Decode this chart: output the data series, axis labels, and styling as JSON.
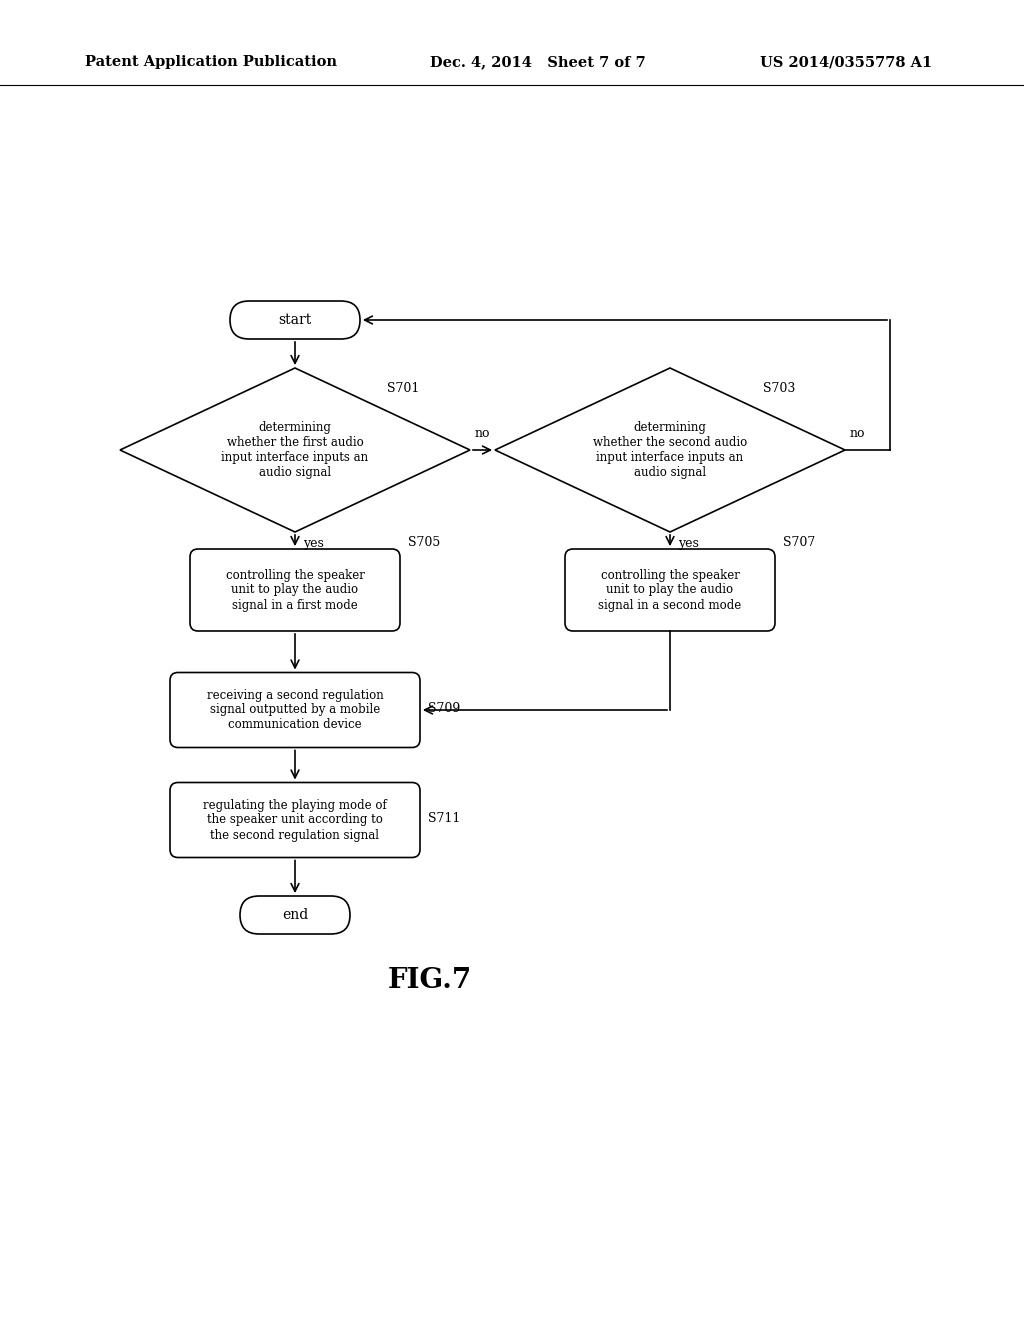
{
  "bg_color": "#ffffff",
  "text_color": "#000000",
  "header_left": "Patent Application Publication",
  "header_mid": "Dec. 4, 2014   Sheet 7 of 7",
  "header_right": "US 2014/0355778 A1",
  "fig_label": "FIG.7",
  "start_label": "start",
  "end_label": "end",
  "diamond1_label": "determining\nwhether the first audio\ninput interface inputs an\naudio signal",
  "diamond1_step": "S701",
  "diamond2_label": "determining\nwhether the second audio\ninput interface inputs an\naudio signal",
  "diamond2_step": "S703",
  "box1_label": "controlling the speaker\nunit to play the audio\nsignal in a first mode",
  "box1_step": "S705",
  "box2_label": "controlling the speaker\nunit to play the audio\nsignal in a second mode",
  "box2_step": "S707",
  "box3_label": "receiving a second regulation\nsignal outputted by a mobile\ncommunication device",
  "box3_step": "S709",
  "box4_label": "regulating the playing mode of\nthe speaker unit according to\nthe second regulation signal",
  "box4_step": "S711",
  "yes_label": "yes",
  "no_label": "no"
}
